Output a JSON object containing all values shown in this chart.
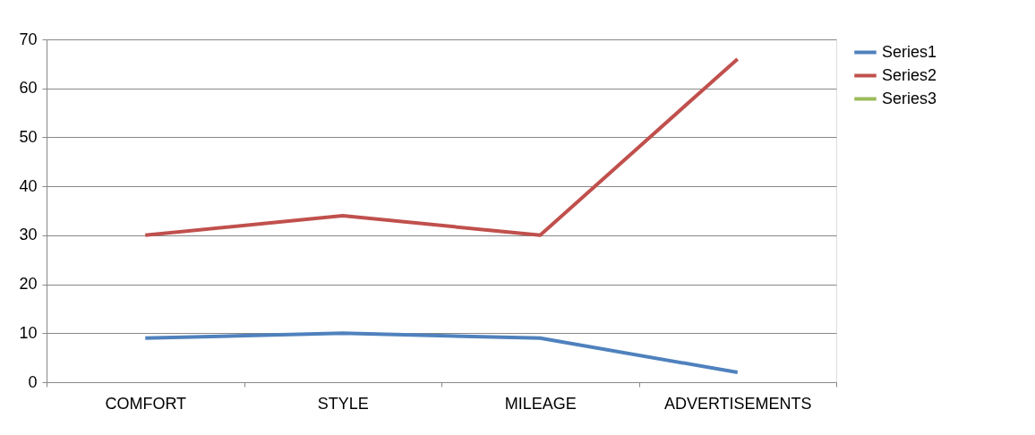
{
  "chart_data": {
    "type": "line",
    "categories": [
      "COMFORT",
      "STYLE",
      "MILEAGE",
      "ADVERTISEMENTS"
    ],
    "series": [
      {
        "name": "Series1",
        "color": "#4f81bd",
        "values": [
          9,
          10,
          9,
          2
        ]
      },
      {
        "name": "Series2",
        "color": "#c0504d",
        "values": [
          30,
          34,
          30,
          66
        ]
      },
      {
        "name": "Series3",
        "color": "#9bbb59",
        "values": [
          null,
          null,
          null,
          null
        ]
      }
    ],
    "ylim": [
      0,
      70
    ],
    "yticks": [
      0,
      10,
      20,
      30,
      40,
      50,
      60,
      70
    ],
    "grid": "y",
    "legend": "right",
    "marker": "none",
    "line_style": "solid"
  }
}
